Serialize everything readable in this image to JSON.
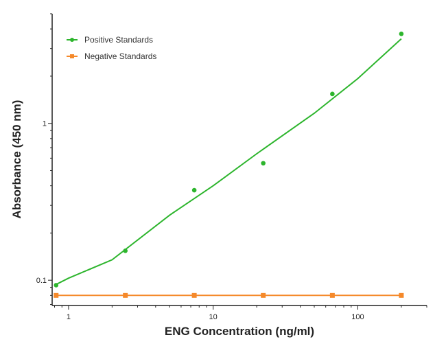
{
  "chart_data": {
    "type": "scatter",
    "title": "",
    "xlabel": "ENG Concentration (ng/ml)",
    "ylabel": "Absorbance (450 nm)",
    "x_scale": "log",
    "y_scale": "log",
    "xlim": [
      0.77,
      300
    ],
    "ylim": [
      0.069,
      5.0
    ],
    "x_ticks": [
      {
        "value": 1,
        "label": "1"
      },
      {
        "value": 10,
        "label": "10"
      },
      {
        "value": 100,
        "label": "100"
      }
    ],
    "y_ticks": [
      {
        "value": 0.1,
        "label": "0.1"
      },
      {
        "value": 1,
        "label": "1"
      }
    ],
    "grid": false,
    "legend_placement": "top-left",
    "series": [
      {
        "name": "Positive Standards",
        "color": "#2db52d",
        "marker": "circle",
        "x": [
          0.82,
          2.47,
          7.4,
          22.2,
          66.7,
          200
        ],
        "y": [
          0.093,
          0.154,
          0.375,
          0.557,
          1.54,
          3.72
        ],
        "fit_curve": {
          "x": [
            0.82,
            1,
            2,
            5,
            10,
            20,
            50,
            100,
            200
          ],
          "y": [
            0.094,
            0.103,
            0.135,
            0.26,
            0.4,
            0.64,
            1.16,
            1.93,
            3.46
          ]
        }
      },
      {
        "name": "Negative Standards",
        "color": "#f5892a",
        "marker": "square",
        "x": [
          0.82,
          2.47,
          7.4,
          22.2,
          66.7,
          200
        ],
        "y": [
          0.08,
          0.08,
          0.08,
          0.08,
          0.08,
          0.08
        ]
      }
    ]
  }
}
